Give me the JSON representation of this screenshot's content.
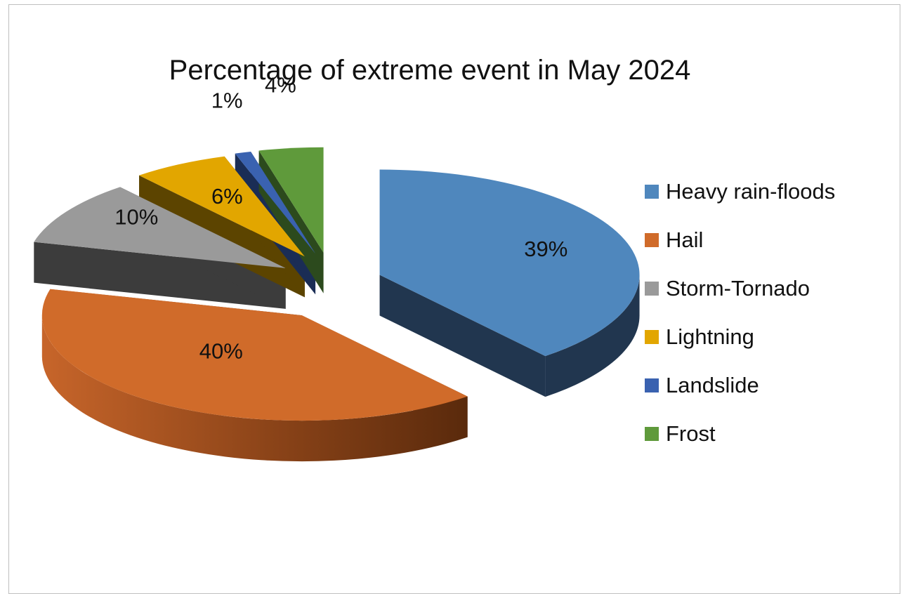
{
  "chart_data": {
    "type": "pie",
    "style": "3d-exploded",
    "title": "Percentage of extreme event in May 2024",
    "categories": [
      "Heavy rain-floods",
      "Hail",
      "Storm-Tornado",
      "Lightning",
      "Landslide",
      "Frost"
    ],
    "values": [
      39,
      40,
      10,
      6,
      1,
      4
    ],
    "data_labels": [
      "39%",
      "40%",
      "10%",
      "6%",
      "1%",
      "4%"
    ],
    "colors": [
      "#4F87BD",
      "#D06B2A",
      "#9A9A9A",
      "#E2A600",
      "#3A62B0",
      "#5F9A3B"
    ],
    "legend_position": "right"
  }
}
